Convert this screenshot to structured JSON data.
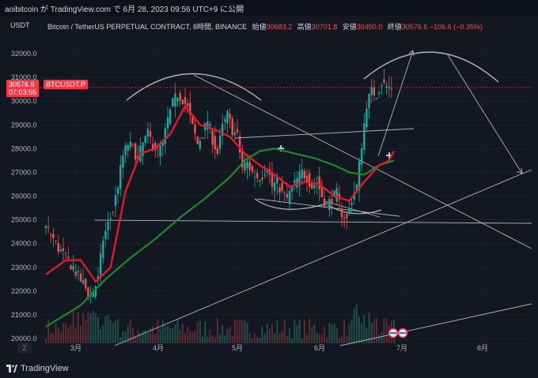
{
  "header": {
    "text": "aoibitcoin が TradingView.com で 6月 28, 2023 09:56 UTC+9 に公開"
  },
  "legend": {
    "title": "Bitcoin / TetherUS PERPETUAL CONTRACT, 8時間, BINANCE",
    "open_label": "始値",
    "open": "30683.2",
    "high_label": "高値",
    "high": "30701.8",
    "low_label": "安値",
    "low": "30450.0",
    "close_label": "終値",
    "close": "30576.6",
    "change": "−106.6 (−0.35%)"
  },
  "price_tag": {
    "price": "30576.6",
    "countdown": "07:03:55",
    "symbol": "BTCUSDT.P"
  },
  "footer": {
    "brand": "TradingView",
    "zoom_button": "Z"
  },
  "colors": {
    "background": "#131722",
    "up": "#26a69a",
    "down": "#ef5350",
    "ma_red": "#e0192b",
    "ma_green": "#1b8a2a",
    "lines": "#b2b5be"
  },
  "chart_data": {
    "type": "candlestick",
    "unit": "USDT",
    "y_ticks": [
      "32000.0",
      "31000.0",
      "30000.0",
      "29000.0",
      "28000.0",
      "27000.0",
      "26000.0",
      "25000.0",
      "24000.0",
      "23000.0",
      "22000.0",
      "21000.0",
      "20000.0"
    ],
    "ylim": [
      19800,
      32600
    ],
    "x_ticks": [
      "3月",
      "4月",
      "5月",
      "6月",
      "7月",
      "8月"
    ],
    "last_price": 30576.6,
    "price_path": [
      [
        0,
        24800
      ],
      [
        3,
        24400
      ],
      [
        6,
        23800
      ],
      [
        9,
        23400
      ],
      [
        12,
        23000
      ],
      [
        14,
        22600
      ],
      [
        16,
        22300
      ],
      [
        18,
        21900
      ],
      [
        20,
        22000
      ],
      [
        22,
        22500
      ],
      [
        24,
        24200
      ],
      [
        26,
        24800
      ],
      [
        28,
        25400
      ],
      [
        30,
        26500
      ],
      [
        32,
        27700
      ],
      [
        34,
        28200
      ],
      [
        36,
        28000
      ],
      [
        38,
        27600
      ],
      [
        40,
        28200
      ],
      [
        42,
        28600
      ],
      [
        44,
        28200
      ],
      [
        46,
        27900
      ],
      [
        48,
        28200
      ],
      [
        50,
        29200
      ],
      [
        52,
        29900
      ],
      [
        54,
        30300
      ],
      [
        56,
        30100
      ],
      [
        58,
        29700
      ],
      [
        60,
        28900
      ],
      [
        62,
        28200
      ],
      [
        64,
        28600
      ],
      [
        66,
        29200
      ],
      [
        68,
        28400
      ],
      [
        70,
        27800
      ],
      [
        72,
        28900
      ],
      [
        74,
        29400
      ],
      [
        76,
        28800
      ],
      [
        78,
        28500
      ],
      [
        80,
        27200
      ],
      [
        82,
        27400
      ],
      [
        84,
        27000
      ],
      [
        86,
        26800
      ],
      [
        88,
        26900
      ],
      [
        90,
        27300
      ],
      [
        92,
        26400
      ],
      [
        94,
        26600
      ],
      [
        96,
        26100
      ],
      [
        98,
        25900
      ],
      [
        100,
        26300
      ],
      [
        102,
        26700
      ],
      [
        104,
        27000
      ],
      [
        106,
        26800
      ],
      [
        108,
        26400
      ],
      [
        110,
        26600
      ],
      [
        112,
        26000
      ],
      [
        114,
        25600
      ],
      [
        116,
        25900
      ],
      [
        118,
        26100
      ],
      [
        120,
        25300
      ],
      [
        122,
        25000
      ],
      [
        124,
        25900
      ],
      [
        126,
        26400
      ],
      [
        128,
        28200
      ],
      [
        130,
        29900
      ],
      [
        132,
        30400
      ],
      [
        134,
        30300
      ],
      [
        136,
        30800
      ],
      [
        138,
        30600
      ],
      [
        140,
        30576
      ]
    ],
    "ma_fast": [
      [
        0,
        22700
      ],
      [
        8,
        23300
      ],
      [
        14,
        23300
      ],
      [
        20,
        22400
      ],
      [
        26,
        23000
      ],
      [
        32,
        26200
      ],
      [
        38,
        27800
      ],
      [
        44,
        28000
      ],
      [
        50,
        28600
      ],
      [
        56,
        29800
      ],
      [
        62,
        29000
      ],
      [
        68,
        28800
      ],
      [
        74,
        28500
      ],
      [
        80,
        27800
      ],
      [
        86,
        27300
      ],
      [
        92,
        26900
      ],
      [
        98,
        26400
      ],
      [
        104,
        26600
      ],
      [
        110,
        26500
      ],
      [
        116,
        26000
      ],
      [
        122,
        25800
      ],
      [
        128,
        26600
      ],
      [
        134,
        27300
      ],
      [
        138,
        27500
      ],
      [
        140,
        27900
      ]
    ],
    "ma_slow": [
      [
        0,
        20500
      ],
      [
        14,
        21400
      ],
      [
        24,
        22500
      ],
      [
        34,
        23400
      ],
      [
        44,
        24200
      ],
      [
        54,
        25100
      ],
      [
        64,
        25900
      ],
      [
        74,
        26800
      ],
      [
        80,
        27500
      ],
      [
        86,
        27900
      ],
      [
        92,
        28000
      ],
      [
        100,
        27800
      ],
      [
        108,
        27600
      ],
      [
        116,
        27300
      ],
      [
        122,
        27000
      ],
      [
        128,
        26900
      ],
      [
        134,
        27300
      ],
      [
        140,
        27500
      ]
    ],
    "volume_max": 100,
    "legend_position": "top-left"
  }
}
